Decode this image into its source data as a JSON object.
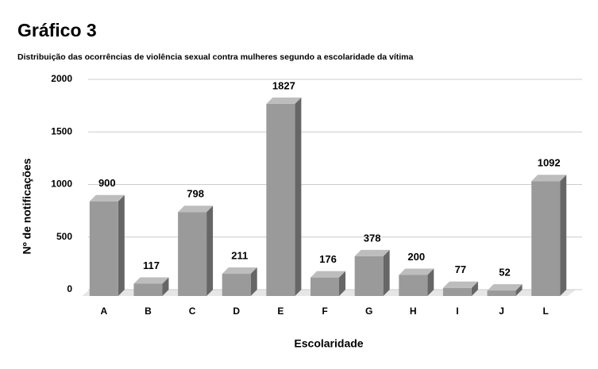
{
  "chart_data": {
    "type": "bar",
    "title": "Gráfico 3",
    "subtitle": "Distribuição das ocorrências de violência sexual contra mulheres segundo a escolaridade da vítima",
    "x_label": "Escolaridade",
    "y_label": "Nº de notificações",
    "categories": [
      "A",
      "B",
      "C",
      "D",
      "E",
      "F",
      "G",
      "H",
      "I",
      "J",
      "L"
    ],
    "values": [
      900,
      117,
      798,
      211,
      1827,
      176,
      378,
      200,
      77,
      52,
      1092
    ],
    "color": "#9a9a9a",
    "ylim": [
      0,
      2000
    ],
    "yticks": [
      0,
      500,
      1000,
      1500,
      2000
    ],
    "grid": true
  }
}
